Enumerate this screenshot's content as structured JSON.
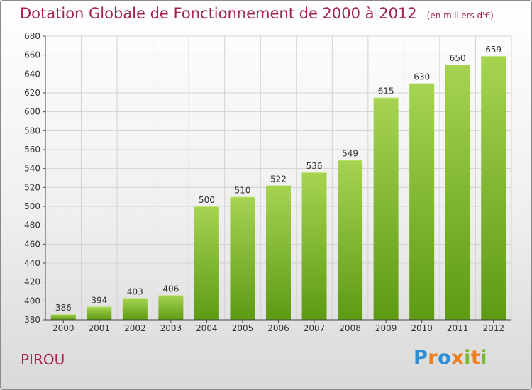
{
  "header": {
    "title": "Dotation Globale de Fonctionnement de 2000 à 2012",
    "unit": "(en milliers d'€)"
  },
  "commune": "PIROU",
  "logo": {
    "text": "Proxiti",
    "colors": [
      "#2c8fd6",
      "#ef7d1a",
      "#7cb832"
    ]
  },
  "chart_data": {
    "type": "bar",
    "title": "Dotation Globale de Fonctionnement de 2000 à 2012",
    "subtitle": "(en milliers d'€)",
    "xlabel": "",
    "ylabel": "",
    "categories": [
      "2000",
      "2001",
      "2002",
      "2003",
      "2004",
      "2005",
      "2006",
      "2007",
      "2008",
      "2009",
      "2010",
      "2011",
      "2012"
    ],
    "values": [
      386,
      394,
      403,
      406,
      500,
      510,
      522,
      536,
      549,
      615,
      630,
      650,
      659
    ],
    "ylim": [
      380,
      680
    ],
    "yticks": [
      380,
      400,
      420,
      440,
      460,
      480,
      500,
      520,
      540,
      560,
      580,
      600,
      620,
      640,
      660,
      680
    ],
    "grid": true,
    "legend": "none",
    "colors": {
      "bar_light": "#a6d451",
      "bar_dark": "#5e9a14",
      "grid": "#d2d2d2",
      "axis": "#444444"
    }
  }
}
